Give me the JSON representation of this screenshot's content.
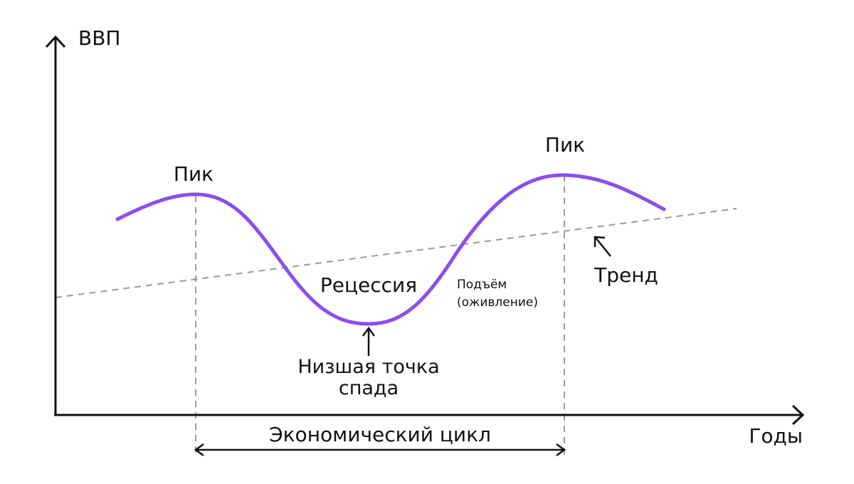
{
  "diagram": {
    "y_axis_label": "ВВП",
    "x_axis_label": "Годы",
    "peak_left_label": "Пик",
    "peak_right_label": "Пик",
    "recession_label": "Рецессия",
    "recovery_label_line1": "Подъём",
    "recovery_label_line2": "(оживление)",
    "trough_label_line1": "Низшая точка",
    "trough_label_line2": "спада",
    "trend_label": "Тренд",
    "cycle_label": "Экономический цикл"
  },
  "colors": {
    "curve": "#8B4DF0",
    "axis": "#111111",
    "guide": "#9a9a9a"
  }
}
